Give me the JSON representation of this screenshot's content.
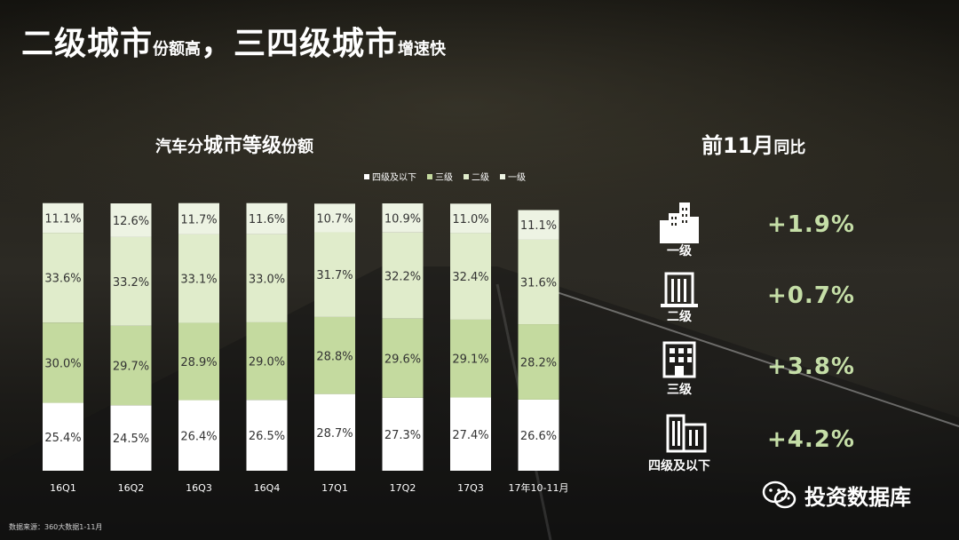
{
  "title": {
    "part1_big": "二级城市",
    "part1_small": "份额高",
    "sep": "，",
    "part2_big": "三四级城市",
    "part2_small": "增速快"
  },
  "chart_data": {
    "type": "bar",
    "stacked": true,
    "title_small_prefix": "汽车分",
    "title_big": "城市等级",
    "title_small_suffix": "份额",
    "categories": [
      "16Q1",
      "16Q2",
      "16Q3",
      "16Q4",
      "17Q1",
      "17Q2",
      "17Q3",
      "17年10-11月"
    ],
    "series": [
      {
        "name": "四级及以下",
        "values": [
          25.4,
          24.5,
          26.4,
          26.5,
          28.7,
          27.3,
          27.4,
          26.6
        ]
      },
      {
        "name": "三级",
        "values": [
          30.0,
          29.7,
          28.9,
          29.0,
          28.8,
          29.6,
          29.1,
          28.2
        ]
      },
      {
        "name": "二级",
        "values": [
          33.6,
          33.2,
          33.1,
          33.0,
          31.7,
          32.2,
          32.4,
          31.6
        ]
      },
      {
        "name": "一级",
        "values": [
          11.1,
          12.6,
          11.7,
          11.6,
          10.7,
          10.9,
          11.0,
          11.1
        ]
      }
    ],
    "value_suffix": "%",
    "ylim": [
      0,
      100
    ],
    "legend_position": "top-right",
    "legend_order": [
      "四级及以下",
      "三级",
      "二级",
      "一级"
    ],
    "grid": false
  },
  "colors": {
    "tier4": "#ffffff",
    "tier3": "#c4da9f",
    "tier2": "#e0eccb",
    "tier1": "#edf3e3",
    "growth_text": "#c5dea7"
  },
  "side": {
    "title_big": "前11月",
    "title_small": "同比",
    "tiers": [
      {
        "name": "一级",
        "growth": "+1.9%",
        "icon": "city-skyline-icon"
      },
      {
        "name": "二级",
        "growth": "+0.7%",
        "icon": "tall-building-icon"
      },
      {
        "name": "三级",
        "growth": "+3.8%",
        "icon": "office-building-icon"
      },
      {
        "name": "四级及以下",
        "growth": "+4.2%",
        "icon": "low-building-icon"
      }
    ]
  },
  "source": "数据来源：360大数据1-11月",
  "watermark": "投资数据库"
}
